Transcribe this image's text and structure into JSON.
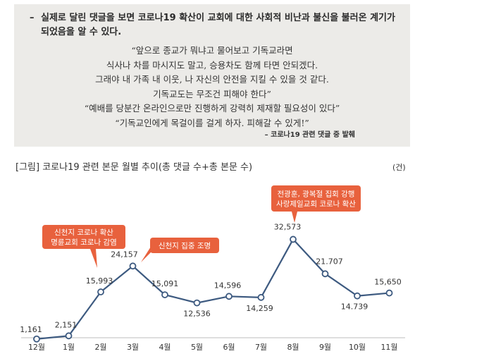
{
  "quote_box": {
    "bullet_dash": "–",
    "bullet_text": "실제로 달린 댓글을 보면 코로나19 확산이 교회에 대한 사회적 비난과 불신을 불러온 계기가 되었음을 알 수 있다.",
    "quotes": [
      "“앞으로 종교가 뭐냐고 물어보고 기독교라면",
      "식사나 차를 마시지도 말고, 승용차도 함께 타면 안되겠다.",
      "그래야 내 가족 내 이웃, 나 자신의 안전을 지킬 수 있을 것 같다.",
      "기독교도는 무조건 피해야 한다”",
      "“예배를 당분간 온라인으로만 진행하게 강력히 제재할 필요성이 있다”",
      "“기독교인에게 목걸이를 걸게 하자. 피해갈 수 있게!”"
    ],
    "source": "– 코로나19 관련 댓글 중 발췌"
  },
  "figure": {
    "title": "[그림] 코로나19 관련 본문 월별 추이(총 댓글 수+총 본문 수)",
    "unit": "(건)"
  },
  "chart_data": {
    "type": "line",
    "categories": [
      "12월",
      "1월",
      "2월",
      "3월",
      "4월",
      "5월",
      "6월",
      "7월",
      "8월",
      "9월",
      "10월",
      "11월"
    ],
    "values": [
      1161,
      2151,
      15993,
      24157,
      15091,
      12536,
      14596,
      14259,
      32573,
      21707,
      14739,
      15650
    ],
    "value_labels": [
      "1,161",
      "2,151",
      "15,993",
      "24,157",
      "15,091",
      "12,536",
      "14,596",
      "14,259",
      "32,573",
      "21.707",
      "14.739",
      "15,650"
    ],
    "line_color": "#3d5a80",
    "callout_color": "#e8613d",
    "annotations": [
      {
        "category": "2월",
        "lines": [
          "신천지 코로나 확산",
          "명륜교회 코로나 감염"
        ]
      },
      {
        "category": "3월",
        "lines": [
          "신천지 집중 조명"
        ]
      },
      {
        "category": "8월",
        "lines": [
          "전광훈, 광복절 집회 강행",
          "사랑제일교회 코로나 확산"
        ]
      }
    ]
  }
}
